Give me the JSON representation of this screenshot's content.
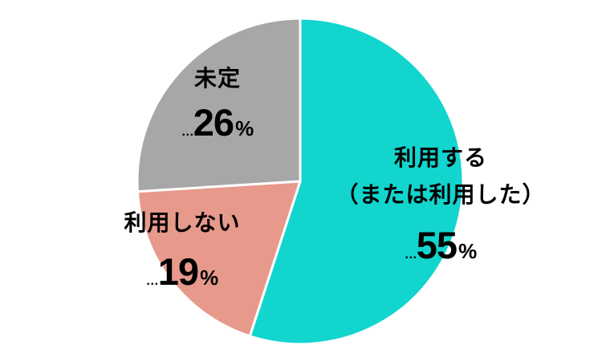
{
  "page": {
    "background": "#ffffff"
  },
  "chart_data": {
    "type": "pie",
    "title": "",
    "categories": [
      "利用する（または利用した）",
      "利用しない",
      "未定"
    ],
    "values": [
      55,
      19,
      26
    ],
    "unit": "%",
    "colors": [
      "#12d5ce",
      "#e79a8b",
      "#a7a7a7"
    ],
    "slice_ids": [
      "use",
      "not-use",
      "undecided"
    ],
    "start_angle_deg": 0,
    "direction": "clockwise",
    "separator_color": "#ffffff",
    "legend_position": "none",
    "labels": [
      {
        "slice": "use",
        "lines": [
          "利用する",
          "（または利用した）"
        ],
        "prefix": "…",
        "value": "55",
        "unit": "%"
      },
      {
        "slice": "not-use",
        "lines": [
          "利用しない"
        ],
        "prefix": "…",
        "value": "19",
        "unit": "%"
      },
      {
        "slice": "undecided",
        "lines": [
          "未定"
        ],
        "prefix": "…",
        "value": "26",
        "unit": "%"
      }
    ]
  }
}
